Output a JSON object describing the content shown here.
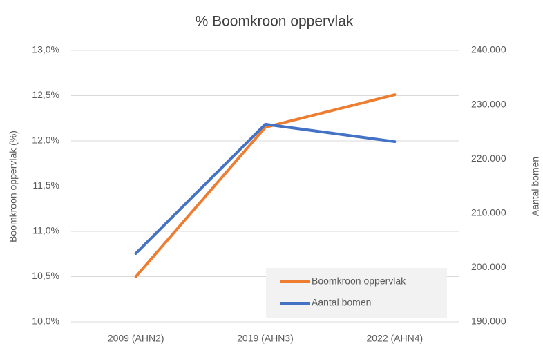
{
  "chart_data": {
    "type": "line",
    "title": "% Boomkroon oppervlak",
    "y_label": "Boomkroon oppervlak (%)",
    "y2_label": "Aantal bomen",
    "categories": [
      "2009 (AHN2)",
      "2019 (AHN3)",
      "2022 (AHN4)"
    ],
    "series": [
      {
        "name": "Boomkroon oppervlak",
        "color": "#ed7d31",
        "values": [
          10.5,
          12.15,
          12.51
        ]
      },
      {
        "name": "Aantal bomen",
        "color": "#4472c4",
        "axis": "y2",
        "values": [
          202600,
          226400,
          223200
        ]
      }
    ],
    "ylim": [
      10,
      13
    ],
    "yticks": [
      {
        "value": 10,
        "label": "10,0%"
      },
      {
        "value": 10.5,
        "label": "10,5%"
      },
      {
        "value": 11,
        "label": "11,0%"
      },
      {
        "value": 11.5,
        "label": "11,5%"
      },
      {
        "value": 12,
        "label": "12,0%"
      },
      {
        "value": 12.5,
        "label": "12,5%"
      },
      {
        "value": 13,
        "label": "13,0%"
      }
    ],
    "y2lim": [
      190000,
      240000
    ],
    "y2ticks": [
      {
        "value": 190000,
        "label": "190.000"
      },
      {
        "value": 200000,
        "label": "200.000"
      },
      {
        "value": 210000,
        "label": "210.000"
      },
      {
        "value": 220000,
        "label": "220.000"
      },
      {
        "value": 230000,
        "label": "230.000"
      },
      {
        "value": 240000,
        "label": "240.000"
      }
    ],
    "grid": true,
    "legend": "lower right"
  }
}
